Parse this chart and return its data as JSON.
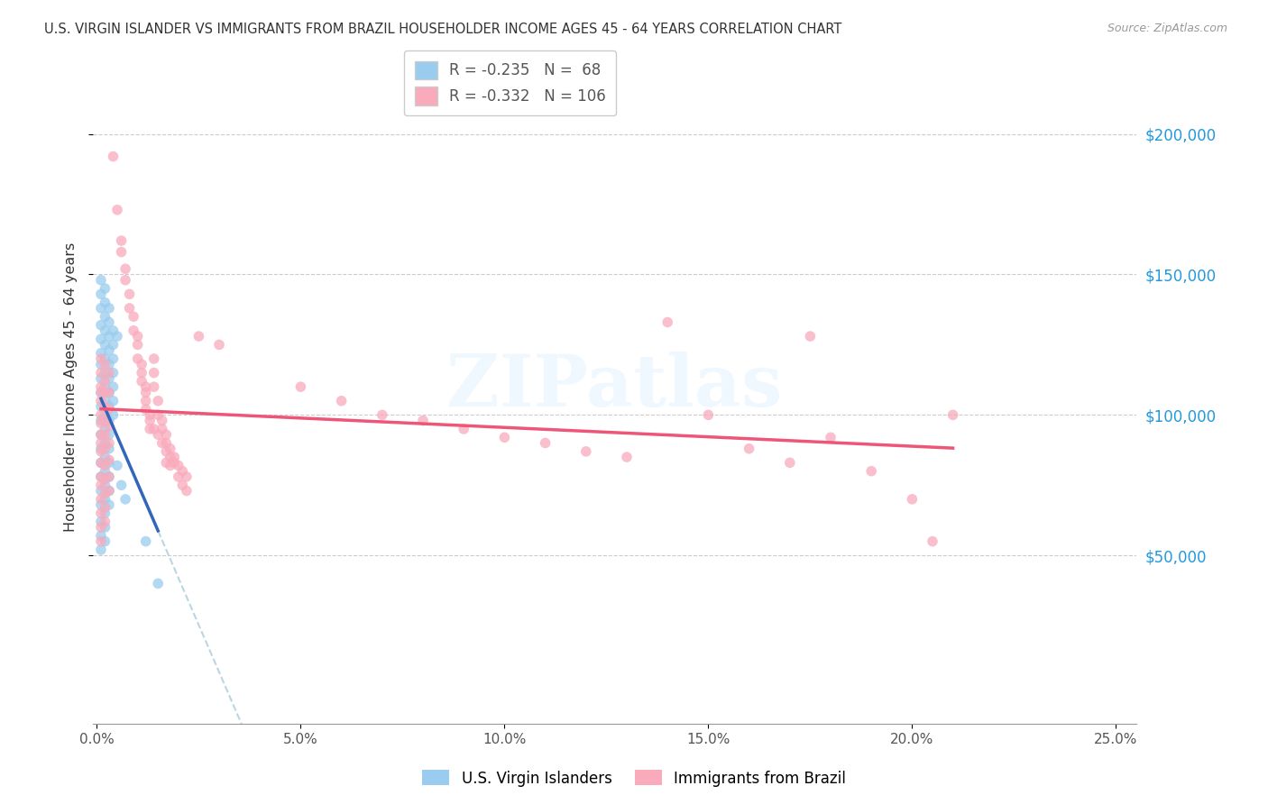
{
  "title": "U.S. VIRGIN ISLANDER VS IMMIGRANTS FROM BRAZIL HOUSEHOLDER INCOME AGES 45 - 64 YEARS CORRELATION CHART",
  "source": "Source: ZipAtlas.com",
  "xlabel_ticks": [
    "0.0%",
    "5.0%",
    "10.0%",
    "15.0%",
    "20.0%",
    "25.0%"
  ],
  "xlabel_vals": [
    0.0,
    0.05,
    0.1,
    0.15,
    0.2,
    0.25
  ],
  "ylabel_ticks": [
    "$50,000",
    "$100,000",
    "$150,000",
    "$200,000"
  ],
  "ylabel_vals": [
    50000,
    100000,
    150000,
    200000
  ],
  "ylim": [
    -10000,
    230000
  ],
  "xlim": [
    -0.001,
    0.255
  ],
  "ylabel": "Householder Income Ages 45 - 64 years",
  "legend_bottom": [
    "U.S. Virgin Islanders",
    "Immigrants from Brazil"
  ],
  "blue_R": -0.235,
  "blue_N": 68,
  "pink_R": -0.332,
  "pink_N": 106,
  "blue_color": "#99CCEE",
  "pink_color": "#F9AABB",
  "blue_line_color": "#3366BB",
  "pink_line_color": "#EE5577",
  "watermark": "ZIPatlas",
  "blue_scatter": [
    [
      0.001,
      148000
    ],
    [
      0.001,
      143000
    ],
    [
      0.001,
      138000
    ],
    [
      0.001,
      132000
    ],
    [
      0.001,
      127000
    ],
    [
      0.001,
      122000
    ],
    [
      0.001,
      118000
    ],
    [
      0.001,
      113000
    ],
    [
      0.001,
      108000
    ],
    [
      0.001,
      103000
    ],
    [
      0.001,
      98000
    ],
    [
      0.001,
      93000
    ],
    [
      0.001,
      88000
    ],
    [
      0.001,
      83000
    ],
    [
      0.001,
      78000
    ],
    [
      0.001,
      73000
    ],
    [
      0.001,
      68000
    ],
    [
      0.001,
      62000
    ],
    [
      0.001,
      57000
    ],
    [
      0.001,
      52000
    ],
    [
      0.002,
      145000
    ],
    [
      0.002,
      140000
    ],
    [
      0.002,
      135000
    ],
    [
      0.002,
      130000
    ],
    [
      0.002,
      125000
    ],
    [
      0.002,
      120000
    ],
    [
      0.002,
      115000
    ],
    [
      0.002,
      110000
    ],
    [
      0.002,
      105000
    ],
    [
      0.002,
      100000
    ],
    [
      0.002,
      95000
    ],
    [
      0.002,
      90000
    ],
    [
      0.002,
      85000
    ],
    [
      0.002,
      80000
    ],
    [
      0.002,
      75000
    ],
    [
      0.002,
      70000
    ],
    [
      0.002,
      65000
    ],
    [
      0.002,
      60000
    ],
    [
      0.002,
      55000
    ],
    [
      0.003,
      138000
    ],
    [
      0.003,
      133000
    ],
    [
      0.003,
      128000
    ],
    [
      0.003,
      123000
    ],
    [
      0.003,
      118000
    ],
    [
      0.003,
      113000
    ],
    [
      0.003,
      108000
    ],
    [
      0.003,
      103000
    ],
    [
      0.003,
      98000
    ],
    [
      0.003,
      93000
    ],
    [
      0.003,
      88000
    ],
    [
      0.003,
      83000
    ],
    [
      0.003,
      78000
    ],
    [
      0.003,
      73000
    ],
    [
      0.003,
      68000
    ],
    [
      0.004,
      130000
    ],
    [
      0.004,
      125000
    ],
    [
      0.004,
      120000
    ],
    [
      0.004,
      115000
    ],
    [
      0.004,
      110000
    ],
    [
      0.004,
      105000
    ],
    [
      0.004,
      100000
    ],
    [
      0.005,
      128000
    ],
    [
      0.005,
      82000
    ],
    [
      0.006,
      75000
    ],
    [
      0.007,
      70000
    ],
    [
      0.012,
      55000
    ],
    [
      0.015,
      40000
    ]
  ],
  "pink_scatter": [
    [
      0.004,
      192000
    ],
    [
      0.005,
      173000
    ],
    [
      0.006,
      162000
    ],
    [
      0.006,
      158000
    ],
    [
      0.007,
      152000
    ],
    [
      0.007,
      148000
    ],
    [
      0.008,
      143000
    ],
    [
      0.008,
      138000
    ],
    [
      0.009,
      135000
    ],
    [
      0.009,
      130000
    ],
    [
      0.01,
      128000
    ],
    [
      0.01,
      125000
    ],
    [
      0.01,
      120000
    ],
    [
      0.011,
      118000
    ],
    [
      0.011,
      115000
    ],
    [
      0.011,
      112000
    ],
    [
      0.012,
      110000
    ],
    [
      0.012,
      108000
    ],
    [
      0.012,
      105000
    ],
    [
      0.012,
      102000
    ],
    [
      0.013,
      100000
    ],
    [
      0.013,
      98000
    ],
    [
      0.013,
      95000
    ],
    [
      0.014,
      120000
    ],
    [
      0.014,
      115000
    ],
    [
      0.014,
      110000
    ],
    [
      0.014,
      95000
    ],
    [
      0.015,
      105000
    ],
    [
      0.015,
      100000
    ],
    [
      0.015,
      93000
    ],
    [
      0.016,
      98000
    ],
    [
      0.016,
      95000
    ],
    [
      0.016,
      90000
    ],
    [
      0.017,
      93000
    ],
    [
      0.017,
      90000
    ],
    [
      0.017,
      87000
    ],
    [
      0.017,
      83000
    ],
    [
      0.018,
      88000
    ],
    [
      0.018,
      85000
    ],
    [
      0.018,
      82000
    ],
    [
      0.019,
      85000
    ],
    [
      0.019,
      83000
    ],
    [
      0.02,
      82000
    ],
    [
      0.02,
      78000
    ],
    [
      0.021,
      80000
    ],
    [
      0.021,
      75000
    ],
    [
      0.022,
      78000
    ],
    [
      0.022,
      73000
    ],
    [
      0.001,
      120000
    ],
    [
      0.001,
      115000
    ],
    [
      0.001,
      110000
    ],
    [
      0.001,
      108000
    ],
    [
      0.001,
      105000
    ],
    [
      0.001,
      100000
    ],
    [
      0.001,
      97000
    ],
    [
      0.001,
      93000
    ],
    [
      0.001,
      90000
    ],
    [
      0.001,
      87000
    ],
    [
      0.001,
      83000
    ],
    [
      0.001,
      78000
    ],
    [
      0.001,
      75000
    ],
    [
      0.001,
      70000
    ],
    [
      0.001,
      65000
    ],
    [
      0.001,
      60000
    ],
    [
      0.001,
      55000
    ],
    [
      0.002,
      118000
    ],
    [
      0.002,
      112000
    ],
    [
      0.002,
      108000
    ],
    [
      0.002,
      103000
    ],
    [
      0.002,
      98000
    ],
    [
      0.002,
      93000
    ],
    [
      0.002,
      88000
    ],
    [
      0.002,
      82000
    ],
    [
      0.002,
      77000
    ],
    [
      0.002,
      72000
    ],
    [
      0.002,
      67000
    ],
    [
      0.002,
      62000
    ],
    [
      0.003,
      115000
    ],
    [
      0.003,
      108000
    ],
    [
      0.003,
      102000
    ],
    [
      0.003,
      96000
    ],
    [
      0.003,
      90000
    ],
    [
      0.003,
      84000
    ],
    [
      0.003,
      78000
    ],
    [
      0.003,
      73000
    ],
    [
      0.025,
      128000
    ],
    [
      0.03,
      125000
    ],
    [
      0.05,
      110000
    ],
    [
      0.06,
      105000
    ],
    [
      0.07,
      100000
    ],
    [
      0.08,
      98000
    ],
    [
      0.09,
      95000
    ],
    [
      0.1,
      92000
    ],
    [
      0.11,
      90000
    ],
    [
      0.12,
      87000
    ],
    [
      0.13,
      85000
    ],
    [
      0.14,
      133000
    ],
    [
      0.15,
      100000
    ],
    [
      0.16,
      88000
    ],
    [
      0.17,
      83000
    ],
    [
      0.175,
      128000
    ],
    [
      0.18,
      92000
    ],
    [
      0.19,
      80000
    ],
    [
      0.2,
      70000
    ],
    [
      0.205,
      55000
    ],
    [
      0.21,
      100000
    ]
  ]
}
